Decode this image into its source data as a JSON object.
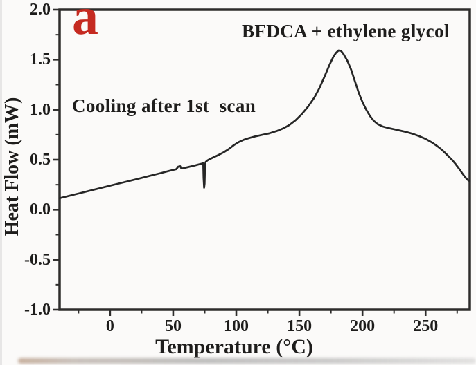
{
  "figure": {
    "panel_label": "a",
    "panel_label_color": "#c52a21",
    "sample_annotation": "BFDCA + ethylene glycol",
    "condition_annotation": "Cooling after 1st  scan",
    "text_color": "#1e1d1c",
    "background_color": "#fbfaf9"
  },
  "chart_data": {
    "type": "line",
    "title": "",
    "xlabel": "Temperature (°C)",
    "ylabel": "Heat Flow (mW)",
    "xlim": [
      -40,
      285
    ],
    "ylim": [
      -1.0,
      2.0
    ],
    "x_ticks": [
      0,
      50,
      100,
      150,
      200,
      250
    ],
    "x_tick_labels": [
      "0",
      "50",
      "100",
      "150",
      "200",
      "250"
    ],
    "x_minor_ticks": [
      -25,
      25,
      75,
      125,
      175,
      225,
      275
    ],
    "y_ticks": [
      2.0,
      1.5,
      1.0,
      0.5,
      0.0,
      -0.5,
      -1.0
    ],
    "y_tick_labels": [
      "2.0",
      "1.5",
      "1.0",
      "0.5",
      "0.0",
      "-0.5",
      "-1.0"
    ],
    "y_minor_ticks": [
      1.75,
      1.25,
      0.75,
      0.25,
      -0.25,
      -0.75
    ],
    "grid": false,
    "legend": false,
    "frame_color": "#2e2d2c",
    "line_color": "#262626",
    "peak": {
      "temperature_c": 181,
      "heat_flow_mw": 1.59
    },
    "artifact_spike": {
      "temperature_c": 75,
      "min_heat_flow_mw": 0.22
    },
    "series": [
      {
        "name": "Cooling after 1st scan",
        "x_unit": "°C",
        "y_unit": "mW",
        "points": [
          [
            -40,
            0.115
          ],
          [
            -32,
            0.14
          ],
          [
            -24,
            0.165
          ],
          [
            -16,
            0.19
          ],
          [
            -8,
            0.215
          ],
          [
            0,
            0.24
          ],
          [
            8,
            0.265
          ],
          [
            16,
            0.29
          ],
          [
            24,
            0.315
          ],
          [
            32,
            0.34
          ],
          [
            40,
            0.365
          ],
          [
            46,
            0.385
          ],
          [
            50,
            0.398
          ],
          [
            52.5,
            0.405
          ],
          [
            54,
            0.43
          ],
          [
            55.5,
            0.435
          ],
          [
            56.5,
            0.412
          ],
          [
            58,
            0.415
          ],
          [
            61,
            0.424
          ],
          [
            64,
            0.433
          ],
          [
            67,
            0.442
          ],
          [
            70,
            0.452
          ],
          [
            72.5,
            0.46
          ],
          [
            73.8,
            0.465
          ],
          [
            74.1,
            0.32
          ],
          [
            74.5,
            0.22
          ],
          [
            74.9,
            0.26
          ],
          [
            75.3,
            0.455
          ],
          [
            75.8,
            0.478
          ],
          [
            77,
            0.492
          ],
          [
            79,
            0.506
          ],
          [
            82,
            0.524
          ],
          [
            86,
            0.548
          ],
          [
            90,
            0.574
          ],
          [
            94,
            0.606
          ],
          [
            98,
            0.645
          ],
          [
            102,
            0.676
          ],
          [
            106,
            0.699
          ],
          [
            110,
            0.716
          ],
          [
            115,
            0.733
          ],
          [
            120,
            0.747
          ],
          [
            126,
            0.763
          ],
          [
            132,
            0.786
          ],
          [
            137,
            0.812
          ],
          [
            142,
            0.846
          ],
          [
            147,
            0.895
          ],
          [
            152,
            0.957
          ],
          [
            157,
            1.032
          ],
          [
            162,
            1.125
          ],
          [
            166,
            1.218
          ],
          [
            170,
            1.332
          ],
          [
            174,
            1.452
          ],
          [
            177,
            1.532
          ],
          [
            179,
            1.568
          ],
          [
            181,
            1.592
          ],
          [
            183,
            1.588
          ],
          [
            185,
            1.556
          ],
          [
            188,
            1.49
          ],
          [
            191,
            1.4
          ],
          [
            194,
            1.285
          ],
          [
            197,
            1.17
          ],
          [
            200,
            1.075
          ],
          [
            203,
            1.0
          ],
          [
            206,
            0.936
          ],
          [
            209,
            0.888
          ],
          [
            212,
            0.856
          ],
          [
            216,
            0.832
          ],
          [
            220,
            0.818
          ],
          [
            225,
            0.805
          ],
          [
            230,
            0.79
          ],
          [
            235,
            0.776
          ],
          [
            240,
            0.758
          ],
          [
            245,
            0.735
          ],
          [
            250,
            0.708
          ],
          [
            255,
            0.672
          ],
          [
            259,
            0.638
          ],
          [
            263,
            0.598
          ],
          [
            267,
            0.549
          ],
          [
            271,
            0.498
          ],
          [
            274,
            0.452
          ],
          [
            277,
            0.402
          ],
          [
            279,
            0.365
          ],
          [
            281,
            0.331
          ],
          [
            283,
            0.301
          ],
          [
            284.5,
            0.288
          ],
          [
            285,
            0.286
          ]
        ]
      }
    ]
  }
}
